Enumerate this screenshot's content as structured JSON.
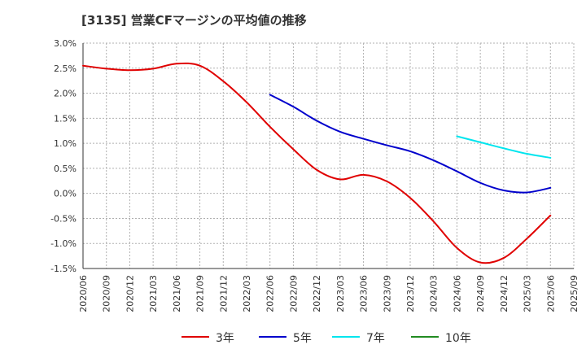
{
  "title": "[3135]  営業CFマージンの平均値の推移",
  "chart_data": {
    "type": "line",
    "title": "[3135]  営業CFマージンの平均値の推移",
    "xlabel": "",
    "ylabel": "",
    "ylim": [
      -1.5,
      3.0
    ],
    "yticks": [
      3.0,
      2.5,
      2.0,
      1.5,
      1.0,
      0.5,
      0.0,
      -0.5,
      -1.0,
      -1.5
    ],
    "ytick_labels": [
      "3.0%",
      "2.5%",
      "2.0%",
      "1.5%",
      "1.0%",
      "0.5%",
      "0.0%",
      "-0.5%",
      "-1.0%",
      "-1.5%"
    ],
    "categories": [
      "2020/06",
      "2020/09",
      "2020/12",
      "2021/03",
      "2021/06",
      "2021/09",
      "2021/12",
      "2022/03",
      "2022/06",
      "2022/09",
      "2022/12",
      "2023/03",
      "2023/06",
      "2023/09",
      "2023/12",
      "2024/03",
      "2024/06",
      "2024/09",
      "2024/12",
      "2025/03",
      "2025/06",
      "2025/09"
    ],
    "grid": true,
    "legend_position": "bottom",
    "series": [
      {
        "name": "3年",
        "color": "#e00000",
        "values": [
          2.55,
          2.49,
          2.46,
          2.49,
          2.59,
          2.55,
          2.24,
          1.82,
          1.33,
          0.88,
          0.47,
          0.28,
          0.37,
          0.24,
          -0.09,
          -0.56,
          -1.09,
          -1.38,
          -1.29,
          -0.9,
          -0.44,
          null
        ]
      },
      {
        "name": "5年",
        "color": "#0000cc",
        "values": [
          null,
          null,
          null,
          null,
          null,
          null,
          null,
          null,
          1.97,
          1.73,
          1.45,
          1.23,
          1.09,
          0.96,
          0.84,
          0.66,
          0.44,
          0.21,
          0.06,
          0.02,
          0.11,
          null
        ]
      },
      {
        "name": "7年",
        "color": "#00e5ee",
        "values": [
          null,
          null,
          null,
          null,
          null,
          null,
          null,
          null,
          null,
          null,
          null,
          null,
          null,
          null,
          null,
          null,
          1.14,
          1.02,
          0.9,
          0.79,
          0.71,
          null
        ]
      },
      {
        "name": "10年",
        "color": "#228b22",
        "values": [
          null,
          null,
          null,
          null,
          null,
          null,
          null,
          null,
          null,
          null,
          null,
          null,
          null,
          null,
          null,
          null,
          null,
          null,
          null,
          null,
          null,
          null
        ]
      }
    ]
  }
}
